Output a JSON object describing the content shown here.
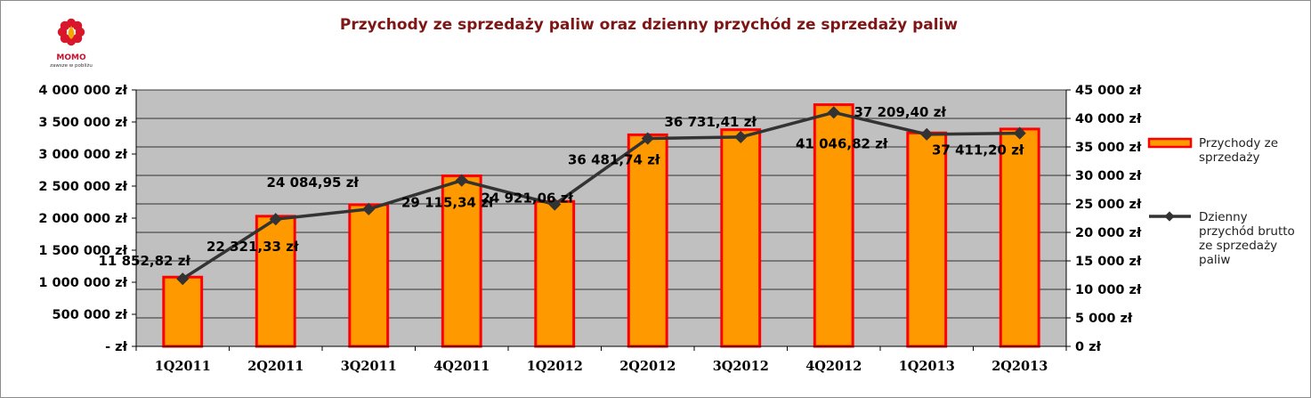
{
  "logo": {
    "brand": "MOMO",
    "tagline": "zawsze w pobliżu"
  },
  "chart_data": {
    "type": "bar+line",
    "title": "Przychody ze sprzedaży paliw oraz dzienny przychód ze sprzedaży paliw",
    "categories": [
      "1Q2011",
      "2Q2011",
      "3Q2011",
      "4Q2011",
      "1Q2012",
      "2Q2012",
      "3Q2012",
      "4Q2012",
      "1Q2013",
      "2Q2013"
    ],
    "series": [
      {
        "name": "Przychody ze sprzedaży",
        "type": "bar",
        "axis": "left",
        "color": "#ff9900",
        "border_color": "#ff0000",
        "values": [
          1080000,
          2030000,
          2210000,
          2660000,
          2260000,
          3300000,
          3380000,
          3770000,
          3330000,
          3390000
        ]
      },
      {
        "name": "Dzienny przychód brutto ze sprzedaży paliw",
        "type": "line",
        "axis": "right",
        "color": "#333333",
        "values": [
          11852.82,
          22321.33,
          24084.95,
          29115.34,
          24921.06,
          36481.74,
          36731.41,
          41046.82,
          37209.4,
          37411.2
        ],
        "labels": [
          "11 852,82 zł",
          "22 321,33 zł",
          "24 084,95 zł",
          "29 115,34 zł",
          "24 921,06 zł",
          "36 481,74 zł",
          "36 731,41 zł",
          "41 046,82 zł",
          "37 209,40 zł",
          "37 411,20 zł"
        ]
      }
    ],
    "y_left": {
      "ylim": [
        0,
        4000000
      ],
      "ticks": [
        "- zł",
        "500 000 zł",
        "1 000 000 zł",
        "1 500 000 zł",
        "2 000 000 zł",
        "2 500 000 zł",
        "3 000 000 zł",
        "3 500 000 zł",
        "4 000 000 zł"
      ]
    },
    "y_right": {
      "ylim": [
        0,
        45000
      ],
      "ticks": [
        "0 zł",
        "5 000 zł",
        "10 000 zł",
        "15 000 zł",
        "20 000 zł",
        "25 000 zł",
        "30 000 zł",
        "35 000 zł",
        "40 000 zł",
        "45 000 zł"
      ]
    },
    "plot_background": "#c0c0c0",
    "grid": true,
    "legend": {
      "position": "right",
      "entries": [
        [
          "Przychody ze",
          "sprzedaży"
        ],
        [
          "Dzienny",
          "przychód brutto",
          "ze sprzedaży",
          "paliw"
        ]
      ]
    }
  }
}
